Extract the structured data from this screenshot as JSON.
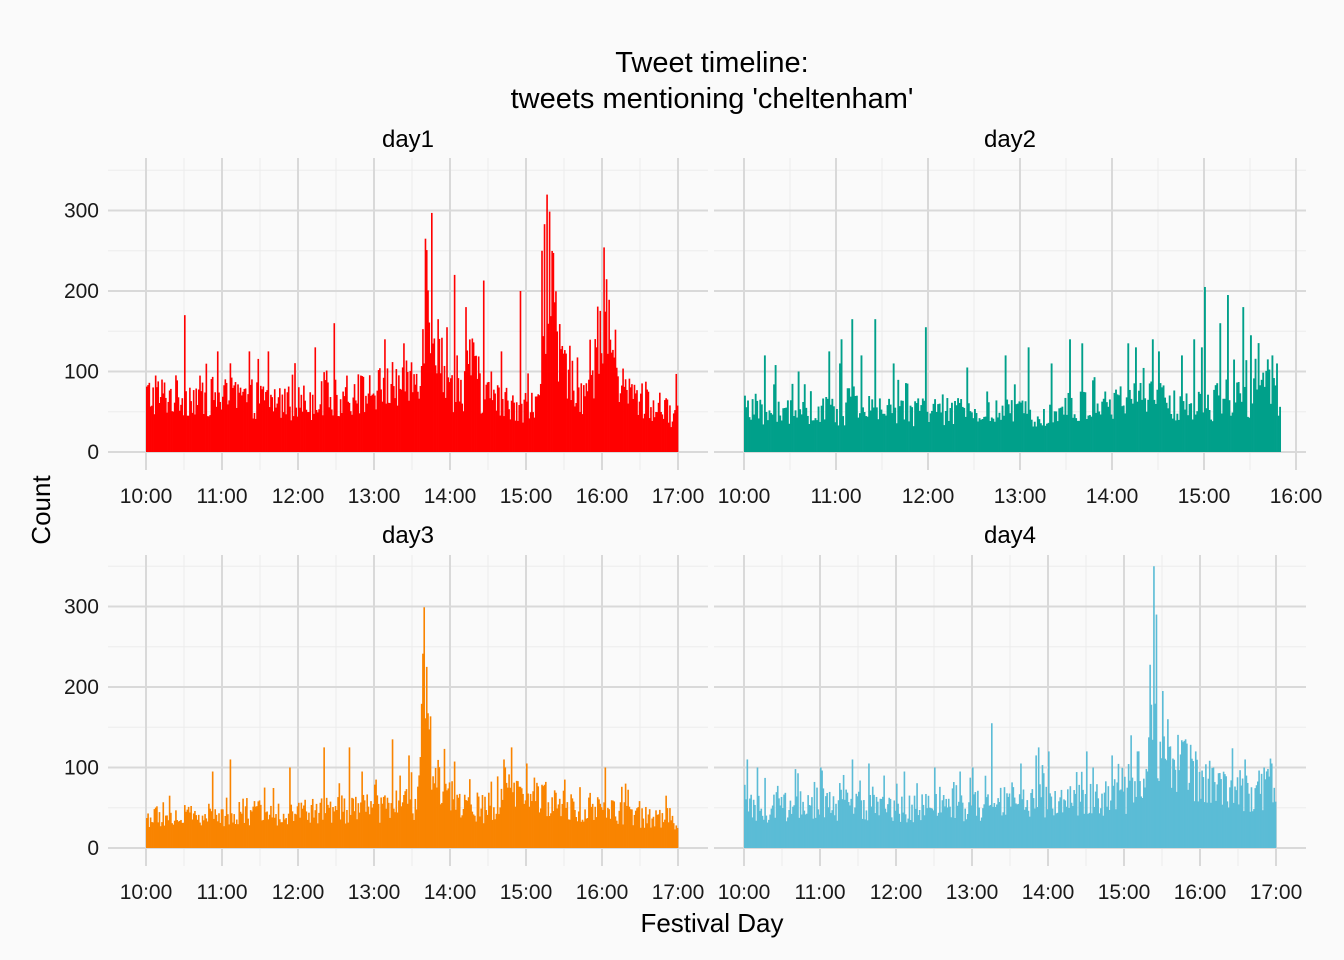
{
  "chart_data": {
    "type": "bar",
    "title_line1": "Tweet timeline:",
    "title_line2": "tweets mentioning 'cheltenham'",
    "xlabel": "Festival Day",
    "ylabel": "Count",
    "ylim": [
      0,
      350
    ],
    "yticks": [
      0,
      100,
      200,
      300
    ],
    "bin_minutes": 1,
    "x_unit": "time of day (minutes since 10:00)",
    "panels": [
      {
        "name": "day1",
        "color": "#ff0000",
        "xlim_minutes": [
          0,
          420
        ],
        "xtick_labels": [
          "10:00",
          "11:00",
          "12:00",
          "13:00",
          "14:00",
          "15:00",
          "16:00",
          "17:00"
        ],
        "duration_minutes": 420,
        "base_profile": [
          [
            0,
            70
          ],
          [
            30,
            70
          ],
          [
            60,
            68
          ],
          [
            90,
            65
          ],
          [
            120,
            62
          ],
          [
            150,
            66
          ],
          [
            180,
            75
          ],
          [
            200,
            85
          ],
          [
            215,
            95
          ],
          [
            222,
            210
          ],
          [
            228,
            140
          ],
          [
            240,
            80
          ],
          [
            250,
            75
          ],
          [
            255,
            120
          ],
          [
            265,
            70
          ],
          [
            285,
            60
          ],
          [
            300,
            58
          ],
          [
            310,
            55
          ],
          [
            313,
            150
          ],
          [
            318,
            240
          ],
          [
            325,
            120
          ],
          [
            340,
            85
          ],
          [
            345,
            70
          ],
          [
            353,
            90
          ],
          [
            358,
            150
          ],
          [
            362,
            190
          ],
          [
            368,
            130
          ],
          [
            375,
            80
          ],
          [
            390,
            65
          ],
          [
            405,
            50
          ],
          [
            420,
            48
          ]
        ],
        "spikes": [
          [
            7,
            95
          ],
          [
            30,
            170
          ],
          [
            56,
            125
          ],
          [
            81,
            125
          ],
          [
            96,
            125
          ],
          [
            133,
            130
          ],
          [
            148,
            160
          ],
          [
            188,
            140
          ],
          [
            203,
            135
          ],
          [
            220,
            265
          ],
          [
            225,
            297
          ],
          [
            230,
            165
          ],
          [
            237,
            155
          ],
          [
            243,
            220
          ],
          [
            245,
            120
          ],
          [
            252,
            180
          ],
          [
            266,
            213
          ],
          [
            280,
            125
          ],
          [
            295,
            200
          ],
          [
            312,
            250
          ],
          [
            314,
            283
          ],
          [
            320,
            195
          ],
          [
            355,
            130
          ],
          [
            361,
            210
          ],
          [
            363,
            205
          ],
          [
            418,
            97
          ]
        ]
      },
      {
        "name": "day2",
        "color": "#00a08a",
        "xlim_minutes": [
          0,
          360
        ],
        "xtick_labels": [
          "10:00",
          "11:00",
          "12:00",
          "13:00",
          "14:00",
          "15:00",
          "16:00"
        ],
        "duration_minutes": 350,
        "base_profile": [
          [
            0,
            48
          ],
          [
            60,
            50
          ],
          [
            90,
            52
          ],
          [
            120,
            50
          ],
          [
            180,
            48
          ],
          [
            210,
            55
          ],
          [
            240,
            58
          ],
          [
            255,
            70
          ],
          [
            280,
            60
          ],
          [
            300,
            55
          ],
          [
            315,
            70
          ],
          [
            330,
            65
          ],
          [
            335,
            100
          ],
          [
            340,
            90
          ],
          [
            345,
            75
          ],
          [
            350,
            30
          ]
        ],
        "spikes": [
          [
            0,
            70
          ],
          [
            13,
            120
          ],
          [
            20,
            108
          ],
          [
            35,
            100
          ],
          [
            55,
            125
          ],
          [
            63,
            140
          ],
          [
            62,
            110
          ],
          [
            70,
            165
          ],
          [
            76,
            120
          ],
          [
            85,
            165
          ],
          [
            97,
            110
          ],
          [
            118,
            155
          ],
          [
            145,
            105
          ],
          [
            170,
            120
          ],
          [
            185,
            130
          ],
          [
            200,
            110
          ],
          [
            212,
            140
          ],
          [
            220,
            135
          ],
          [
            250,
            135
          ],
          [
            255,
            130
          ],
          [
            266,
            140
          ],
          [
            270,
            125
          ],
          [
            285,
            120
          ],
          [
            293,
            140
          ],
          [
            298,
            130
          ],
          [
            300,
            205
          ],
          [
            310,
            160
          ],
          [
            315,
            150
          ],
          [
            315,
            195
          ],
          [
            325,
            180
          ],
          [
            330,
            145
          ],
          [
            344,
            120
          ],
          [
            347,
            110
          ]
        ]
      },
      {
        "name": "day3",
        "color": "#f98400",
        "xlim_minutes": [
          0,
          420
        ],
        "xtick_labels": [
          "10:00",
          "11:00",
          "12:00",
          "13:00",
          "14:00",
          "15:00",
          "16:00",
          "17:00"
        ],
        "duration_minutes": 420,
        "base_profile": [
          [
            0,
            38
          ],
          [
            40,
            40
          ],
          [
            80,
            42
          ],
          [
            120,
            45
          ],
          [
            160,
            48
          ],
          [
            200,
            50
          ],
          [
            214,
            55
          ],
          [
            218,
            230
          ],
          [
            220,
            180
          ],
          [
            222,
            140
          ],
          [
            228,
            95
          ],
          [
            236,
            70
          ],
          [
            250,
            55
          ],
          [
            275,
            45
          ],
          [
            288,
            70
          ],
          [
            300,
            75
          ],
          [
            315,
            60
          ],
          [
            330,
            55
          ],
          [
            360,
            48
          ],
          [
            390,
            40
          ],
          [
            420,
            35
          ]
        ],
        "spikes": [
          [
            18,
            65
          ],
          [
            52,
            95
          ],
          [
            66,
            110
          ],
          [
            113,
            100
          ],
          [
            140,
            125
          ],
          [
            160,
            125
          ],
          [
            170,
            95
          ],
          [
            181,
            85
          ],
          [
            194,
            135
          ],
          [
            200,
            90
          ],
          [
            207,
            115
          ],
          [
            219,
            299
          ],
          [
            221,
            225
          ],
          [
            235,
            115
          ],
          [
            255,
            80
          ],
          [
            282,
            110
          ],
          [
            288,
            125
          ],
          [
            300,
            105
          ],
          [
            330,
            85
          ],
          [
            362,
            100
          ],
          [
            378,
            80
          ],
          [
            410,
            65
          ]
        ]
      },
      {
        "name": "day4",
        "color": "#5bbcd6",
        "xlim_minutes": [
          0,
          420
        ],
        "xtick_labels": [
          "10:00",
          "11:00",
          "12:00",
          "13:00",
          "14:00",
          "15:00",
          "16:00",
          "17:00"
        ],
        "duration_minutes": 420,
        "base_profile": [
          [
            0,
            48
          ],
          [
            60,
            55
          ],
          [
            120,
            50
          ],
          [
            180,
            52
          ],
          [
            220,
            58
          ],
          [
            240,
            60
          ],
          [
            270,
            58
          ],
          [
            300,
            65
          ],
          [
            315,
            70
          ],
          [
            322,
            200
          ],
          [
            326,
            130
          ],
          [
            340,
            110
          ],
          [
            360,
            85
          ],
          [
            380,
            75
          ],
          [
            400,
            70
          ],
          [
            412,
            75
          ],
          [
            415,
            85
          ],
          [
            420,
            55
          ]
        ],
        "spikes": [
          [
            2,
            110
          ],
          [
            10,
            100
          ],
          [
            40,
            98
          ],
          [
            60,
            100
          ],
          [
            85,
            110
          ],
          [
            98,
            105
          ],
          [
            110,
            90
          ],
          [
            126,
            95
          ],
          [
            150,
            100
          ],
          [
            170,
            95
          ],
          [
            180,
            100
          ],
          [
            195,
            155
          ],
          [
            218,
            105
          ],
          [
            230,
            115
          ],
          [
            232,
            125
          ],
          [
            240,
            120
          ],
          [
            270,
            120
          ],
          [
            275,
            100
          ],
          [
            290,
            115
          ],
          [
            305,
            140
          ],
          [
            310,
            120
          ],
          [
            323,
            350
          ],
          [
            325,
            290
          ],
          [
            330,
            195
          ],
          [
            334,
            160
          ],
          [
            348,
            135
          ],
          [
            356,
            120
          ],
          [
            370,
            100
          ],
          [
            395,
            110
          ],
          [
            410,
            100
          ],
          [
            416,
            105
          ]
        ]
      }
    ]
  }
}
